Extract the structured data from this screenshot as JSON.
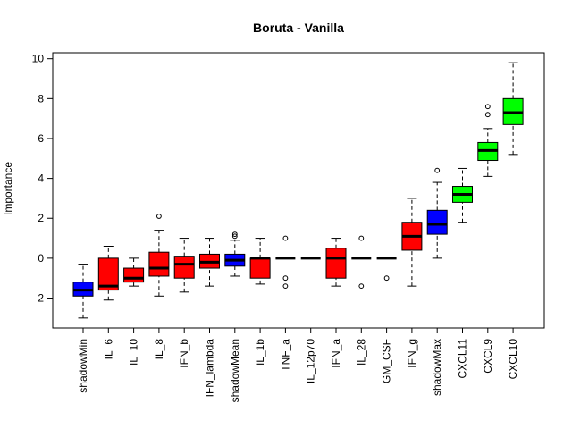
{
  "chart_data": {
    "type": "boxplot",
    "title": "Boruta - Vanilla",
    "xlabel": "",
    "ylabel": "Importance",
    "ylim": [
      -3.5,
      10.3
    ],
    "yticks": [
      -2,
      0,
      2,
      4,
      6,
      8,
      10
    ],
    "grid": false,
    "legend": "none",
    "categories": [
      "shadowMin",
      "IL_6",
      "IL_10",
      "IL_8",
      "IFN_b",
      "IFN_lambda",
      "shadowMean",
      "IL_1b",
      "TNF_a",
      "IL_12p70",
      "IFN_a",
      "IL_28",
      "GM_CSF",
      "IFN_g",
      "shadowMax",
      "CXCL11",
      "CXCL9",
      "CXCL10"
    ],
    "boxes": [
      {
        "label": "shadowMin",
        "color": "#0000ff",
        "min": -3.0,
        "q1": -1.9,
        "median": -1.6,
        "q3": -1.2,
        "max": -0.3,
        "outliers": []
      },
      {
        "label": "IL_6",
        "color": "#ff0000",
        "min": -2.1,
        "q1": -1.6,
        "median": -1.4,
        "q3": 0.0,
        "max": 0.6,
        "outliers": []
      },
      {
        "label": "IL_10",
        "color": "#ff0000",
        "min": -1.4,
        "q1": -1.2,
        "median": -1.0,
        "q3": -0.5,
        "max": 0.0,
        "outliers": []
      },
      {
        "label": "IL_8",
        "color": "#ff0000",
        "min": -1.9,
        "q1": -0.9,
        "median": -0.5,
        "q3": 0.3,
        "max": 1.4,
        "outliers": [
          2.1
        ]
      },
      {
        "label": "IFN_b",
        "color": "#ff0000",
        "min": -1.7,
        "q1": -1.0,
        "median": -0.3,
        "q3": 0.1,
        "max": 1.0,
        "outliers": []
      },
      {
        "label": "IFN_lambda",
        "color": "#ff0000",
        "min": -1.4,
        "q1": -0.5,
        "median": -0.2,
        "q3": 0.2,
        "max": 1.0,
        "outliers": []
      },
      {
        "label": "shadowMean",
        "color": "#0000ff",
        "min": -0.9,
        "q1": -0.4,
        "median": -0.1,
        "q3": 0.2,
        "max": 0.9,
        "outliers": [
          1.2,
          1.1
        ]
      },
      {
        "label": "IL_1b",
        "color": "#ff0000",
        "min": -1.3,
        "q1": -1.0,
        "median": 0.0,
        "q3": 0.0,
        "max": 1.0,
        "outliers": []
      },
      {
        "label": "TNF_a",
        "color": "#ff0000",
        "min": 0.0,
        "q1": 0.0,
        "median": 0.0,
        "q3": 0.0,
        "max": 0.0,
        "outliers": [
          1.0,
          -1.0,
          -1.4
        ]
      },
      {
        "label": "IL_12p70",
        "color": "#ff0000",
        "min": 0.0,
        "q1": 0.0,
        "median": 0.0,
        "q3": 0.0,
        "max": 0.0,
        "outliers": []
      },
      {
        "label": "IFN_a",
        "color": "#ff0000",
        "min": -1.4,
        "q1": -1.0,
        "median": 0.0,
        "q3": 0.5,
        "max": 1.0,
        "outliers": []
      },
      {
        "label": "IL_28",
        "color": "#ff0000",
        "min": 0.0,
        "q1": 0.0,
        "median": 0.0,
        "q3": 0.0,
        "max": 0.0,
        "outliers": [
          1.0,
          -1.4
        ]
      },
      {
        "label": "GM_CSF",
        "color": "#ff0000",
        "min": 0.0,
        "q1": 0.0,
        "median": 0.0,
        "q3": 0.0,
        "max": 0.0,
        "outliers": [
          -1.0
        ]
      },
      {
        "label": "IFN_g",
        "color": "#ff0000",
        "min": -1.4,
        "q1": 0.4,
        "median": 1.1,
        "q3": 1.8,
        "max": 3.0,
        "outliers": []
      },
      {
        "label": "shadowMax",
        "color": "#0000ff",
        "min": 0.0,
        "q1": 1.2,
        "median": 1.7,
        "q3": 2.4,
        "max": 3.8,
        "outliers": [
          4.4
        ]
      },
      {
        "label": "CXCL11",
        "color": "#00ff00",
        "min": 1.8,
        "q1": 2.8,
        "median": 3.2,
        "q3": 3.6,
        "max": 4.5,
        "outliers": []
      },
      {
        "label": "CXCL9",
        "color": "#00ff00",
        "min": 4.1,
        "q1": 4.9,
        "median": 5.4,
        "q3": 5.8,
        "max": 6.5,
        "outliers": [
          7.2,
          7.6
        ]
      },
      {
        "label": "CXCL10",
        "color": "#00ff00",
        "min": 5.2,
        "q1": 6.7,
        "median": 7.3,
        "q3": 8.0,
        "max": 9.8,
        "outliers": []
      }
    ]
  }
}
